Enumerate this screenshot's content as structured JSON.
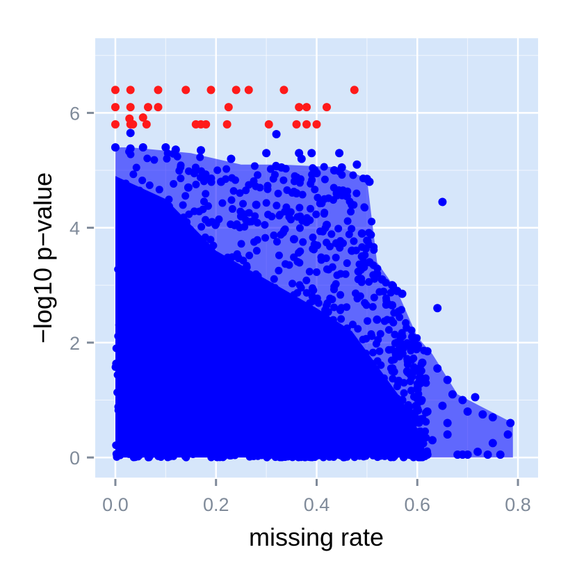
{
  "chart_data": {
    "type": "scatter",
    "title": "",
    "xlabel": "missing rate",
    "ylabel": "−log10 p−value",
    "xlim": [
      -0.04,
      0.84
    ],
    "ylim": [
      -0.35,
      7.3
    ],
    "xticks": [
      0.0,
      0.2,
      0.4,
      0.6,
      0.8
    ],
    "xtick_labels": [
      "0.0",
      "0.2",
      "0.4",
      "0.6",
      "0.8"
    ],
    "yticks": [
      0,
      2,
      4,
      6
    ],
    "ytick_labels": [
      "0",
      "2",
      "4",
      "6"
    ],
    "grid": true,
    "legend": "none",
    "colors": {
      "panel_background": "#d6e6fa",
      "grid": "#ffffff",
      "normal": "#0000ff",
      "significant": "#ff1a1a",
      "tick": "#7f8a99"
    },
    "series": [
      {
        "color": "#ff1a1a",
        "points": [
          [
            0.0,
            6.4
          ],
          [
            0.03,
            6.4
          ],
          [
            0.085,
            6.4
          ],
          [
            0.14,
            6.4
          ],
          [
            0.19,
            6.4
          ],
          [
            0.24,
            6.4
          ],
          [
            0.265,
            6.4
          ],
          [
            0.335,
            6.4
          ],
          [
            0.475,
            6.4
          ],
          [
            0.0,
            6.1
          ],
          [
            0.03,
            6.1
          ],
          [
            0.065,
            6.1
          ],
          [
            0.085,
            6.1
          ],
          [
            0.225,
            6.1
          ],
          [
            0.365,
            6.1
          ],
          [
            0.38,
            6.1
          ],
          [
            0.42,
            6.1
          ],
          [
            0.028,
            5.9
          ],
          [
            0.055,
            5.92
          ],
          [
            0.0,
            5.8
          ],
          [
            0.03,
            5.8
          ],
          [
            0.035,
            5.8
          ],
          [
            0.062,
            5.8
          ],
          [
            0.16,
            5.8
          ],
          [
            0.17,
            5.8
          ],
          [
            0.18,
            5.8
          ],
          [
            0.222,
            5.8
          ],
          [
            0.305,
            5.8
          ],
          [
            0.36,
            5.8
          ],
          [
            0.38,
            5.8
          ],
          [
            0.4,
            5.8
          ]
        ]
      },
      {
        "color": "#0000ff",
        "points": [
          [
            0.03,
            5.65
          ],
          [
            0.32,
            5.63
          ],
          [
            0.0,
            5.4
          ],
          [
            0.03,
            5.38
          ],
          [
            0.055,
            5.4
          ],
          [
            0.1,
            5.4
          ],
          [
            0.12,
            5.36
          ],
          [
            0.17,
            5.35
          ],
          [
            0.23,
            5.2
          ],
          [
            0.3,
            5.3
          ],
          [
            0.365,
            5.3
          ],
          [
            0.39,
            5.3
          ],
          [
            0.445,
            5.3
          ],
          [
            0.37,
            5.2
          ],
          [
            0.33,
            5.05
          ],
          [
            0.4,
            4.95
          ],
          [
            0.435,
            5.0
          ],
          [
            0.45,
            5.05
          ],
          [
            0.48,
            5.1
          ],
          [
            0.505,
            4.8
          ],
          [
            0.5,
            4.85
          ],
          [
            0.44,
            4.6
          ],
          [
            0.46,
            4.55
          ],
          [
            0.47,
            4.4
          ],
          [
            0.36,
            4.6
          ],
          [
            0.28,
            4.4
          ],
          [
            0.21,
            4.8
          ],
          [
            0.145,
            4.7
          ],
          [
            0.07,
            4.5
          ],
          [
            0.09,
            4.3
          ],
          [
            0.25,
            4.2
          ],
          [
            0.38,
            4.1
          ],
          [
            0.42,
            4.05
          ],
          [
            0.49,
            3.9
          ],
          [
            0.355,
            3.8
          ],
          [
            0.47,
            3.6
          ],
          [
            0.49,
            3.5
          ],
          [
            0.505,
            3.4
          ],
          [
            0.52,
            3.2
          ],
          [
            0.53,
            3.1
          ],
          [
            0.55,
            3.0
          ],
          [
            0.56,
            2.9
          ],
          [
            0.57,
            2.85
          ],
          [
            0.55,
            2.65
          ],
          [
            0.52,
            2.4
          ],
          [
            0.65,
            4.45
          ],
          [
            0.64,
            2.6
          ],
          [
            0.59,
            2.1
          ],
          [
            0.62,
            1.85
          ],
          [
            0.61,
            1.65
          ],
          [
            0.64,
            1.55
          ],
          [
            0.66,
            1.35
          ],
          [
            0.58,
            1.5
          ],
          [
            0.6,
            1.2
          ],
          [
            0.57,
            1.0
          ],
          [
            0.6,
            0.85
          ],
          [
            0.62,
            0.8
          ],
          [
            0.65,
            0.9
          ],
          [
            0.67,
            1.1
          ],
          [
            0.69,
            1.0
          ],
          [
            0.715,
            1.05
          ],
          [
            0.7,
            0.8
          ],
          [
            0.73,
            0.75
          ],
          [
            0.75,
            0.7
          ],
          [
            0.785,
            0.6
          ],
          [
            0.78,
            0.4
          ],
          [
            0.75,
            0.25
          ],
          [
            0.74,
            0.05
          ],
          [
            0.765,
            0.05
          ],
          [
            0.72,
            0.1
          ],
          [
            0.7,
            0.05
          ],
          [
            0.69,
            0.05
          ],
          [
            0.68,
            0.05
          ],
          [
            0.66,
            0.4
          ],
          [
            0.66,
            0.6
          ],
          [
            0.63,
            0.3
          ],
          [
            0.61,
            0.25
          ],
          [
            0.6,
            0.1
          ],
          [
            0.62,
            0.05
          ]
        ]
      }
    ]
  }
}
